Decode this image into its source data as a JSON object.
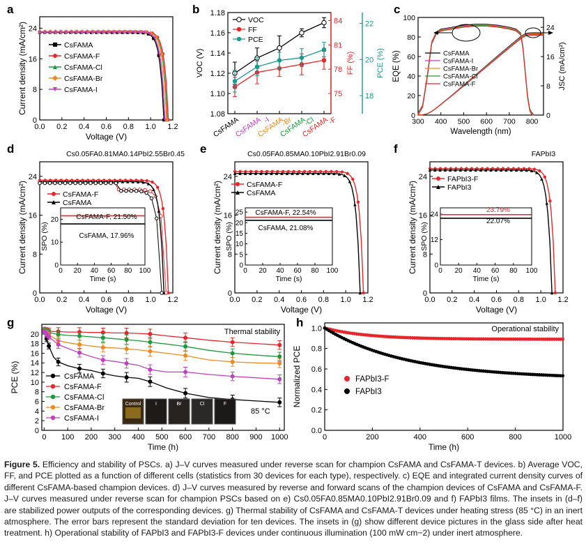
{
  "caption": {
    "label": "Figure 5.",
    "text": "Efficiency and stability of PSCs. a) J–V curves measured under reverse scan for champion CsFAMA and CsFAMA-T devices. b) Average VOC, FF, and PCE plotted as a function of different cells (statistics from 30 devices for each type), respectively. c) EQE and integrated current density curves of different CsFAMA-based champion devices. d) J–V curves measured by reverse and forward scans of the champion devices of CsFAMA and CsFAMA-F. J–V curves measured under reverse scan for champion PSCs based on e) Cs0.05FA0.85MA0.10PbI2.91Br0.09 and f) FAPbI3 films. The insets in (d–f) are stabilized power outputs of the corresponding devices. g) Thermal stability of CsFAMA and CsFAMA-T devices under heating stress (85 °C) in an inert atmosphere. The error bars represent the standard deviation for ten devices. The insets in (g) show different device pictures in the glass side after heat treatment. h) Operational stability of FAPbI3 and FAPbI3-F devices under continuous illumination (100 mW cm−2) under inert atmosphere."
  },
  "colors": {
    "CsFAMA": "#000000",
    "CsFAMA-F": "#e8262a",
    "CsFAMA-Cl": "#1a9b3a",
    "CsFAMA-Br": "#f08a1c",
    "CsFAMA-I": "#c23fc2",
    "teal": "#1a9a8e"
  },
  "chart_data": [
    {
      "panel": "a",
      "type": "line",
      "xlabel": "Voltage (V)",
      "ylabel": "Current density (mA/cm²)",
      "xlim": [
        0,
        1.2
      ],
      "ylim": [
        0,
        27
      ],
      "xticks": [
        "0.0",
        "0.2",
        "0.4",
        "0.6",
        "0.8",
        "1.0",
        "1.2"
      ],
      "yticks": [
        "0",
        "8",
        "16",
        "24"
      ],
      "legend": "left-middle",
      "series": [
        {
          "name": "CsFAMA",
          "jsc": 22.9,
          "voc": 1.12
        },
        {
          "name": "CsFAMA-F",
          "jsc": 23.1,
          "voc": 1.16
        },
        {
          "name": "CsFAMA-Cl",
          "jsc": 23.0,
          "voc": 1.15
        },
        {
          "name": "CsFAMA-Br",
          "jsc": 23.1,
          "voc": 1.145
        },
        {
          "name": "CsFAMA-I",
          "jsc": 23.0,
          "voc": 1.13
        }
      ]
    },
    {
      "panel": "b",
      "type": "line",
      "categories": [
        "CsFAMA",
        "CsFAMA-I",
        "CsFAMA-Br",
        "CsFAMA-Cl",
        "CsFAMA-F"
      ],
      "ylabel_left": "VOC (V)",
      "ylabel_right1": "FF (%)",
      "ylabel_right2": "PCE (%)",
      "ylim_left": [
        1.08,
        1.18
      ],
      "ylim_ff": [
        72.5,
        85
      ],
      "ylim_pce": [
        17,
        22.6
      ],
      "yticks_left": [
        "1.08",
        "1.10",
        "1.12",
        "1.14",
        "1.16",
        "1.18"
      ],
      "yticks_ff": [
        "75",
        "78",
        "81",
        "84"
      ],
      "yticks_pce": [
        "18",
        "20",
        "22"
      ],
      "series": [
        {
          "name": "VOC",
          "values": [
            1.12,
            1.135,
            1.145,
            1.16,
            1.17
          ],
          "err": [
            0.011,
            0.01,
            0.012,
            0.004,
            0.005
          ]
        },
        {
          "name": "FF",
          "values": [
            75.8,
            77.6,
            78.1,
            78.6,
            79.1
          ],
          "err": [
            1.2,
            1.4,
            1.0,
            1.3,
            1.1
          ]
        },
        {
          "name": "PCE",
          "values": [
            18.8,
            19.6,
            19.95,
            20.1,
            20.55
          ],
          "err": [
            0.6,
            0.5,
            0.45,
            0.5,
            0.4
          ]
        }
      ]
    },
    {
      "panel": "c",
      "type": "line",
      "xlabel": "Wavelength (nm)",
      "ylabel_left": "EQE (%)",
      "ylabel_right": "JSC (mA/cm²)",
      "xlim": [
        300,
        850
      ],
      "ylim_left": [
        0,
        100
      ],
      "ylim_right": [
        0,
        26.7
      ],
      "xticks": [
        "300",
        "400",
        "500",
        "600",
        "700",
        "800"
      ],
      "yticks_left": [
        "0",
        "20",
        "40",
        "60",
        "80",
        "100"
      ],
      "yticks_right": [
        "0",
        "8",
        "16",
        "24"
      ],
      "eqe_x": [
        300,
        320,
        340,
        360,
        380,
        400,
        450,
        500,
        550,
        600,
        650,
        700,
        730,
        750,
        760,
        770,
        780,
        790,
        800,
        810
      ],
      "eqe_y": [
        2,
        10,
        40,
        75,
        85,
        88,
        90,
        92,
        93,
        93,
        92,
        90,
        88,
        84,
        70,
        45,
        20,
        6,
        2,
        0
      ],
      "series": [
        {
          "name": "CsFAMA"
        },
        {
          "name": "CsFAMA-I"
        },
        {
          "name": "CsFAMA-Br"
        },
        {
          "name": "CsFAMA-Cl"
        },
        {
          "name": "CsFAMA-F"
        }
      ],
      "jsc_final": 22.5
    },
    {
      "panel": "d",
      "type": "line",
      "title": "Cs0.05FA0.81MA0.14PbI2.55Br0.45",
      "xlabel": "Voltage (V)",
      "ylabel": "Current density (mA/cm²)",
      "xlim": [
        0,
        1.2
      ],
      "ylim": [
        0,
        27
      ],
      "xticks": [
        "0.0",
        "0.2",
        "0.4",
        "0.6",
        "0.8",
        "1.0",
        "1.2"
      ],
      "yticks": [
        "0",
        "8",
        "16",
        "24"
      ],
      "series": [
        {
          "name": "CsFAMA-F",
          "jsc": 23.2,
          "voc": 1.16,
          "forward_voc": 1.14
        },
        {
          "name": "CsFAMA",
          "jsc": 22.9,
          "voc": 1.12,
          "forward_voc": 1.1
        }
      ],
      "inset": {
        "xlabel": "Time (s)",
        "ylabel": "SPO (%)",
        "xticks": [
          "0",
          "20",
          "40",
          "60",
          "80",
          "100"
        ],
        "yticks": [
          "0",
          "10",
          "20"
        ],
        "ylim": [
          0,
          25
        ],
        "xlim": [
          0,
          100
        ],
        "labels": [
          "CsFAMA-F, 21.50%",
          "CsFAMA, 17.96%"
        ],
        "values": [
          21.5,
          17.96
        ]
      }
    },
    {
      "panel": "e",
      "type": "line",
      "title": "Cs0.05FA0.85MA0.10PbI2.91Br0.09",
      "xlabel": "Voltage (V)",
      "ylabel": "Current density (mA/cm²)",
      "xlim": [
        0,
        1.2
      ],
      "ylim": [
        0,
        27
      ],
      "xticks": [
        "0.0",
        "0.2",
        "0.4",
        "0.6",
        "0.8",
        "1.0",
        "1.2"
      ],
      "yticks": [
        "0",
        "8",
        "16",
        "24"
      ],
      "series": [
        {
          "name": "CsFAMA-F",
          "jsc": 25.0,
          "voc": 1.16
        },
        {
          "name": "CsFAMA",
          "jsc": 24.6,
          "voc": 1.13
        }
      ],
      "inset": {
        "xlabel": "Time (s)",
        "ylabel": "SPO (%)",
        "xticks": [
          "0",
          "20",
          "40",
          "60",
          "80",
          "100"
        ],
        "yticks": [
          "0",
          "5",
          "10",
          "15",
          "20",
          "25"
        ],
        "ylim": [
          0,
          27
        ],
        "xlim": [
          0,
          100
        ],
        "labels": [
          "CsFAMA-F, 22.54%",
          "CsFAMA, 21.08%"
        ],
        "values": [
          22.54,
          21.08
        ]
      }
    },
    {
      "panel": "f",
      "type": "line",
      "title": "FAPbI3",
      "xlabel": "Voltage (V)",
      "ylabel": "Current density (mA/cm²)",
      "xlim": [
        0,
        1.2
      ],
      "ylim": [
        0,
        27
      ],
      "xticks": [
        "0.0",
        "0.2",
        "0.4",
        "0.6",
        "0.8",
        "1.0",
        "1.2"
      ],
      "yticks": [
        "0",
        "8",
        "16",
        "24"
      ],
      "series": [
        {
          "name": "FAPbI3-F",
          "jsc": 25.6,
          "voc": 1.13
        },
        {
          "name": "FAPbI3",
          "jsc": 25.3,
          "voc": 1.1
        }
      ],
      "inset": {
        "xlabel": "Time (s)",
        "ylabel": "SPO (%)",
        "xticks": [
          "0",
          "20",
          "40",
          "60",
          "80",
          "100"
        ],
        "yticks": [
          "0",
          "12",
          "24"
        ],
        "ylim": [
          0,
          27
        ],
        "xlim": [
          0,
          100
        ],
        "labels": [
          "23.79%",
          "22.07%"
        ],
        "values": [
          23.79,
          22.07
        ]
      }
    },
    {
      "panel": "g",
      "type": "line",
      "title": "Thermal stability",
      "xlabel": "Time (h)",
      "ylabel": "PCE (%)",
      "xlim": [
        -10,
        1020
      ],
      "ylim": [
        0,
        22
      ],
      "xticks": [
        "0",
        "100",
        "200",
        "300",
        "400",
        "500",
        "600",
        "700",
        "800",
        "900",
        "1000"
      ],
      "yticks": [
        "0",
        "2",
        "4",
        "6",
        "8",
        "10",
        "12",
        "14",
        "16",
        "18",
        "20"
      ],
      "annotation": "85 °C",
      "inset_labels": [
        "Control",
        "I",
        "Br",
        "Cl",
        "F"
      ],
      "x": [
        0,
        10,
        20,
        40,
        60,
        100,
        150,
        200,
        250,
        300,
        350,
        400,
        450,
        520,
        600,
        700,
        800,
        900,
        1000
      ],
      "series": [
        {
          "name": "CsFAMA",
          "values": [
            20.5,
            19,
            17.5,
            15.2,
            14.2,
            13.4,
            12.8,
            12.4,
            11.8,
            11.3,
            11.0,
            10.8,
            10.1,
            8.8,
            7.7,
            6.8,
            6.4,
            6.1,
            5.8
          ]
        },
        {
          "name": "CsFAMA-F",
          "values": [
            20.8,
            20.7,
            20.6,
            20.5,
            20.5,
            20.4,
            20.4,
            20.3,
            20.3,
            20.2,
            20.2,
            20.1,
            20.0,
            19.6,
            19.2,
            18.7,
            18.3,
            18.0,
            17.7
          ]
        },
        {
          "name": "CsFAMA-Cl",
          "values": [
            20.6,
            20.5,
            20.3,
            20.1,
            19.9,
            19.7,
            19.6,
            19.4,
            19.2,
            19.0,
            18.8,
            18.6,
            18.3,
            17.9,
            17.4,
            16.6,
            16.0,
            15.6,
            15.3
          ]
        },
        {
          "name": "CsFAMA-Br",
          "values": [
            20.5,
            20.2,
            19.8,
            19.2,
            18.6,
            18.2,
            17.8,
            17.5,
            17.2,
            17.1,
            16.9,
            16.7,
            16.4,
            16.0,
            15.5,
            14.6,
            14.2,
            14.0,
            13.9
          ]
        },
        {
          "name": "CsFAMA-I",
          "values": [
            20.5,
            20.0,
            19.4,
            18.6,
            17.8,
            17.0,
            16.1,
            15.3,
            14.6,
            14.3,
            13.9,
            13.5,
            12.6,
            12.1,
            12.1,
            11.6,
            11.2,
            10.9,
            10.6
          ]
        }
      ],
      "err": [
        0.6,
        0.6,
        0.6,
        0.7,
        0.8,
        0.9,
        0.9,
        0.9,
        0.9,
        0.9,
        1.0,
        1.0,
        1.0,
        1.0,
        1.0,
        0.9,
        0.9,
        0.9,
        0.9
      ]
    },
    {
      "panel": "h",
      "type": "scatter",
      "title": "Operational stability",
      "xlabel": "Time (h)",
      "ylabel": "Normalized PCE",
      "xlim": [
        0,
        1000
      ],
      "ylim": [
        0,
        1.05
      ],
      "xticks": [
        "0",
        "200",
        "400",
        "600",
        "800",
        "1000"
      ],
      "yticks": [
        "0.0",
        "0.2",
        "0.4",
        "0.6",
        "0.8",
        "1.0"
      ],
      "series": [
        {
          "name": "FAPbI3-F",
          "final": 0.89,
          "tau": 180,
          "drop": 0.11
        },
        {
          "name": "FAPbI3",
          "final": 0.55,
          "tau": 330,
          "drop": 0.47
        }
      ]
    }
  ]
}
